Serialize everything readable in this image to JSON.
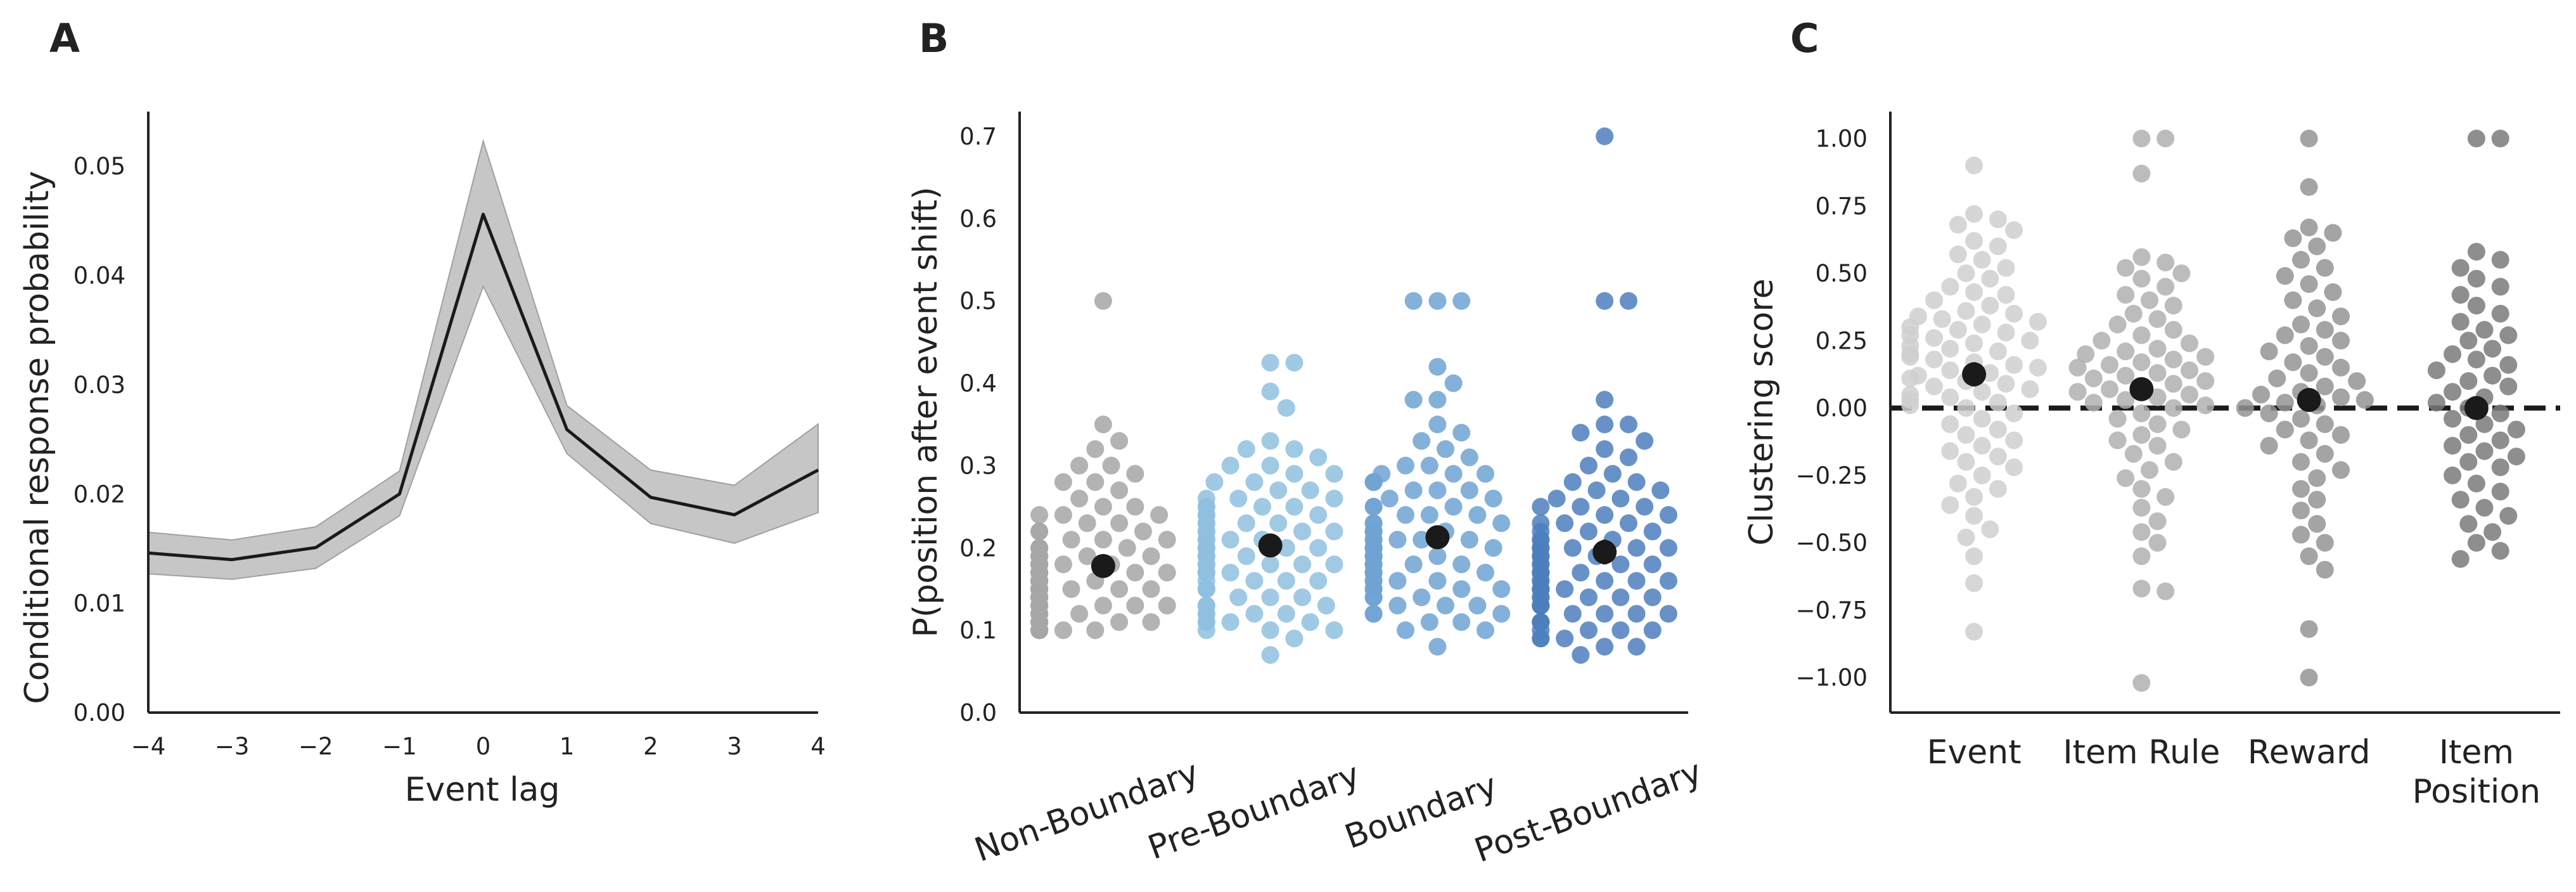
{
  "panels": {
    "a": {
      "letter": "A"
    },
    "b": {
      "letter": "B"
    },
    "c": {
      "letter": "C"
    }
  },
  "colors": {
    "line": "#1a1a1a",
    "band": "#c6c6c6",
    "mean_marker": "#1a1a1a",
    "zero_line": "#1a1a1a",
    "b_non_boundary": "#a6a6a6",
    "b_pre_boundary": "#8fbfdf",
    "b_boundary": "#6ea3d2",
    "b_post_boundary": "#4d7fbd",
    "c_event": "#cfcfcf",
    "c_item_rule": "#b0b0b0",
    "c_reward": "#949494",
    "c_item_position": "#7a7a7a"
  },
  "chart_data": [
    {
      "type": "line",
      "xlabel": "Event lag",
      "ylabel": "Conditional response probability",
      "xlim": [
        -4,
        4
      ],
      "ylim": [
        0,
        0.055
      ],
      "xticks": [
        "−4",
        "−3",
        "−2",
        "−1",
        "0",
        "1",
        "2",
        "3",
        "4"
      ],
      "yticks": [
        "0.00",
        "0.01",
        "0.02",
        "0.03",
        "0.04",
        "0.05"
      ],
      "grid": false,
      "series": [
        {
          "x": [
            -4,
            -3,
            -2,
            -1,
            0,
            1,
            2,
            3,
            4
          ],
          "values": [
            0.0146,
            0.014,
            0.0151,
            0.02,
            0.0456,
            0.0259,
            0.0197,
            0.0181,
            0.0222
          ],
          "lower": [
            0.0127,
            0.0122,
            0.0132,
            0.018,
            0.039,
            0.0237,
            0.0173,
            0.0155,
            0.0183
          ],
          "upper": [
            0.0165,
            0.0158,
            0.017,
            0.0221,
            0.0523,
            0.0281,
            0.0222,
            0.0208,
            0.0264
          ]
        }
      ]
    },
    {
      "type": "scatter",
      "ylabel": "P(position after event shift)",
      "ylim": [
        0,
        0.73
      ],
      "yticks": [
        "0.0",
        "0.1",
        "0.2",
        "0.3",
        "0.4",
        "0.5",
        "0.6",
        "0.7"
      ],
      "categories": [
        "Non-Boundary",
        "Pre-Boundary",
        "Boundary",
        "Post-Boundary"
      ],
      "grid": false,
      "means": [
        0.178,
        0.203,
        0.213,
        0.195
      ],
      "mean_ci": [
        [
          0.168,
          0.188
        ],
        [
          0.193,
          0.213
        ],
        [
          0.201,
          0.225
        ],
        [
          0.18,
          0.21
        ]
      ],
      "series": [
        {
          "name": "Non-Boundary",
          "values": [
            0.5,
            0.35,
            0.33,
            0.32,
            0.3,
            0.3,
            0.29,
            0.28,
            0.28,
            0.27,
            0.26,
            0.25,
            0.25,
            0.24,
            0.24,
            0.24,
            0.23,
            0.23,
            0.22,
            0.22,
            0.22,
            0.21,
            0.21,
            0.21,
            0.2,
            0.2,
            0.2,
            0.2,
            0.2,
            0.2,
            0.19,
            0.19,
            0.19,
            0.19,
            0.19,
            0.19,
            0.18,
            0.18,
            0.18,
            0.18,
            0.18,
            0.18,
            0.18,
            0.17,
            0.17,
            0.17,
            0.17,
            0.17,
            0.17,
            0.17,
            0.17,
            0.16,
            0.16,
            0.16,
            0.16,
            0.16,
            0.16,
            0.16,
            0.16,
            0.16,
            0.15,
            0.15,
            0.15,
            0.15,
            0.15,
            0.15,
            0.15,
            0.15,
            0.15,
            0.14,
            0.14,
            0.14,
            0.14,
            0.14,
            0.14,
            0.14,
            0.14,
            0.14,
            0.13,
            0.13,
            0.13,
            0.13,
            0.13,
            0.13,
            0.13,
            0.13,
            0.12,
            0.12,
            0.12,
            0.12,
            0.12,
            0.12,
            0.12,
            0.11,
            0.11,
            0.11,
            0.11,
            0.11,
            0.11,
            0.1,
            0.1,
            0.1,
            0.1,
            0.1,
            0.1,
            0.1,
            0.1,
            0.1,
            0.1,
            0.1
          ]
        },
        {
          "name": "Pre-Boundary",
          "values": [
            0.425,
            0.425,
            0.39,
            0.37,
            0.33,
            0.32,
            0.32,
            0.31,
            0.3,
            0.3,
            0.29,
            0.29,
            0.28,
            0.28,
            0.27,
            0.27,
            0.26,
            0.26,
            0.26,
            0.25,
            0.25,
            0.25,
            0.25,
            0.24,
            0.24,
            0.24,
            0.23,
            0.23,
            0.23,
            0.23,
            0.22,
            0.22,
            0.22,
            0.22,
            0.21,
            0.21,
            0.21,
            0.21,
            0.21,
            0.2,
            0.2,
            0.2,
            0.2,
            0.2,
            0.2,
            0.2,
            0.2,
            0.19,
            0.19,
            0.19,
            0.19,
            0.19,
            0.18,
            0.18,
            0.18,
            0.18,
            0.18,
            0.17,
            0.17,
            0.17,
            0.17,
            0.17,
            0.16,
            0.16,
            0.16,
            0.16,
            0.15,
            0.15,
            0.15,
            0.15,
            0.14,
            0.14,
            0.14,
            0.13,
            0.13,
            0.13,
            0.12,
            0.12,
            0.12,
            0.12,
            0.11,
            0.11,
            0.11,
            0.11,
            0.1,
            0.1,
            0.1,
            0.09,
            0.07
          ]
        },
        {
          "name": "Boundary",
          "values": [
            0.5,
            0.5,
            0.5,
            0.42,
            0.4,
            0.38,
            0.38,
            0.35,
            0.34,
            0.33,
            0.32,
            0.31,
            0.3,
            0.3,
            0.29,
            0.29,
            0.29,
            0.28,
            0.28,
            0.28,
            0.27,
            0.27,
            0.27,
            0.26,
            0.26,
            0.25,
            0.25,
            0.25,
            0.24,
            0.24,
            0.24,
            0.23,
            0.23,
            0.23,
            0.22,
            0.22,
            0.22,
            0.22,
            0.21,
            0.21,
            0.21,
            0.21,
            0.21,
            0.2,
            0.2,
            0.2,
            0.2,
            0.2,
            0.2,
            0.2,
            0.19,
            0.19,
            0.19,
            0.19,
            0.19,
            0.18,
            0.18,
            0.18,
            0.18,
            0.18,
            0.17,
            0.17,
            0.17,
            0.17,
            0.16,
            0.16,
            0.16,
            0.16,
            0.15,
            0.15,
            0.15,
            0.15,
            0.14,
            0.14,
            0.14,
            0.13,
            0.13,
            0.13,
            0.12,
            0.12,
            0.12,
            0.11,
            0.11,
            0.1,
            0.1,
            0.08
          ]
        },
        {
          "name": "Post-Boundary",
          "values": [
            0.7,
            0.5,
            0.5,
            0.38,
            0.35,
            0.35,
            0.34,
            0.33,
            0.32,
            0.31,
            0.3,
            0.29,
            0.28,
            0.28,
            0.27,
            0.27,
            0.26,
            0.26,
            0.25,
            0.25,
            0.25,
            0.24,
            0.24,
            0.23,
            0.23,
            0.23,
            0.22,
            0.22,
            0.22,
            0.21,
            0.21,
            0.21,
            0.2,
            0.2,
            0.2,
            0.2,
            0.2,
            0.2,
            0.19,
            0.19,
            0.19,
            0.19,
            0.18,
            0.18,
            0.18,
            0.18,
            0.17,
            0.17,
            0.17,
            0.17,
            0.17,
            0.16,
            0.16,
            0.16,
            0.16,
            0.16,
            0.15,
            0.15,
            0.15,
            0.15,
            0.15,
            0.14,
            0.14,
            0.14,
            0.14,
            0.14,
            0.13,
            0.13,
            0.13,
            0.13,
            0.12,
            0.12,
            0.12,
            0.12,
            0.11,
            0.11,
            0.11,
            0.11,
            0.1,
            0.1,
            0.1,
            0.1,
            0.09,
            0.09,
            0.09,
            0.08,
            0.08,
            0.07
          ]
        }
      ]
    },
    {
      "type": "scatter",
      "ylabel": "Clustering score",
      "ylim": [
        -1.13,
        1.1
      ],
      "yticks": [
        "−1.00",
        "−0.75",
        "−0.50",
        "−0.25",
        "0.00",
        "0.25",
        "0.50",
        "0.75",
        "1.00"
      ],
      "categories": [
        "Event",
        "Item Rule",
        "Reward",
        "Item\nPosition"
      ],
      "grid": false,
      "reference_line": 0,
      "means": [
        0.125,
        0.07,
        0.03,
        0.0
      ],
      "mean_ci": [
        [
          0.08,
          0.17
        ],
        [
          0.03,
          0.11
        ],
        [
          -0.01,
          0.07
        ],
        [
          -0.04,
          0.04
        ]
      ],
      "series": [
        {
          "name": "Event",
          "values": [
            0.9,
            0.72,
            0.7,
            0.68,
            0.66,
            0.62,
            0.6,
            0.57,
            0.55,
            0.52,
            0.5,
            0.48,
            0.45,
            0.43,
            0.42,
            0.4,
            0.38,
            0.36,
            0.35,
            0.34,
            0.33,
            0.32,
            0.31,
            0.3,
            0.29,
            0.28,
            0.27,
            0.26,
            0.25,
            0.24,
            0.23,
            0.22,
            0.21,
            0.2,
            0.19,
            0.18,
            0.17,
            0.16,
            0.15,
            0.14,
            0.13,
            0.12,
            0.11,
            0.1,
            0.09,
            0.08,
            0.07,
            0.06,
            0.05,
            0.04,
            0.03,
            0.02,
            0.01,
            0.0,
            -0.02,
            -0.04,
            -0.06,
            -0.08,
            -0.1,
            -0.12,
            -0.14,
            -0.16,
            -0.18,
            -0.2,
            -0.22,
            -0.25,
            -0.28,
            -0.3,
            -0.33,
            -0.36,
            -0.4,
            -0.45,
            -0.48,
            -0.55,
            -0.65,
            -0.83
          ]
        },
        {
          "name": "Item Rule",
          "values": [
            1.0,
            1.0,
            0.87,
            0.56,
            0.54,
            0.52,
            0.5,
            0.48,
            0.45,
            0.42,
            0.4,
            0.38,
            0.35,
            0.33,
            0.31,
            0.29,
            0.27,
            0.25,
            0.24,
            0.22,
            0.21,
            0.2,
            0.19,
            0.18,
            0.17,
            0.16,
            0.15,
            0.14,
            0.13,
            0.12,
            0.11,
            0.1,
            0.09,
            0.08,
            0.07,
            0.06,
            0.05,
            0.04,
            0.03,
            0.02,
            0.01,
            0.0,
            -0.02,
            -0.04,
            -0.06,
            -0.08,
            -0.1,
            -0.12,
            -0.14,
            -0.17,
            -0.2,
            -0.23,
            -0.26,
            -0.3,
            -0.33,
            -0.37,
            -0.42,
            -0.46,
            -0.5,
            -0.55,
            -0.67,
            -0.68,
            -1.02
          ]
        },
        {
          "name": "Reward",
          "values": [
            1.0,
            0.82,
            0.67,
            0.65,
            0.63,
            0.6,
            0.55,
            0.52,
            0.49,
            0.46,
            0.43,
            0.4,
            0.37,
            0.34,
            0.31,
            0.29,
            0.27,
            0.25,
            0.23,
            0.21,
            0.19,
            0.17,
            0.15,
            0.13,
            0.11,
            0.1,
            0.08,
            0.06,
            0.05,
            0.04,
            0.03,
            0.02,
            0.01,
            0.0,
            -0.02,
            -0.04,
            -0.06,
            -0.08,
            -0.1,
            -0.12,
            -0.14,
            -0.17,
            -0.2,
            -0.23,
            -0.26,
            -0.3,
            -0.34,
            -0.38,
            -0.43,
            -0.47,
            -0.5,
            -0.55,
            -0.6,
            -0.82,
            -1.0
          ]
        },
        {
          "name": "Item\nPosition",
          "values": [
            1.0,
            1.0,
            0.58,
            0.55,
            0.52,
            0.48,
            0.45,
            0.42,
            0.38,
            0.35,
            0.32,
            0.29,
            0.27,
            0.25,
            0.22,
            0.2,
            0.18,
            0.16,
            0.14,
            0.12,
            0.1,
            0.08,
            0.06,
            0.04,
            0.02,
            0.0,
            -0.02,
            -0.04,
            -0.06,
            -0.08,
            -0.1,
            -0.12,
            -0.14,
            -0.16,
            -0.18,
            -0.2,
            -0.22,
            -0.25,
            -0.28,
            -0.31,
            -0.34,
            -0.37,
            -0.4,
            -0.43,
            -0.46,
            -0.5,
            -0.53,
            -0.56
          ]
        }
      ]
    }
  ]
}
